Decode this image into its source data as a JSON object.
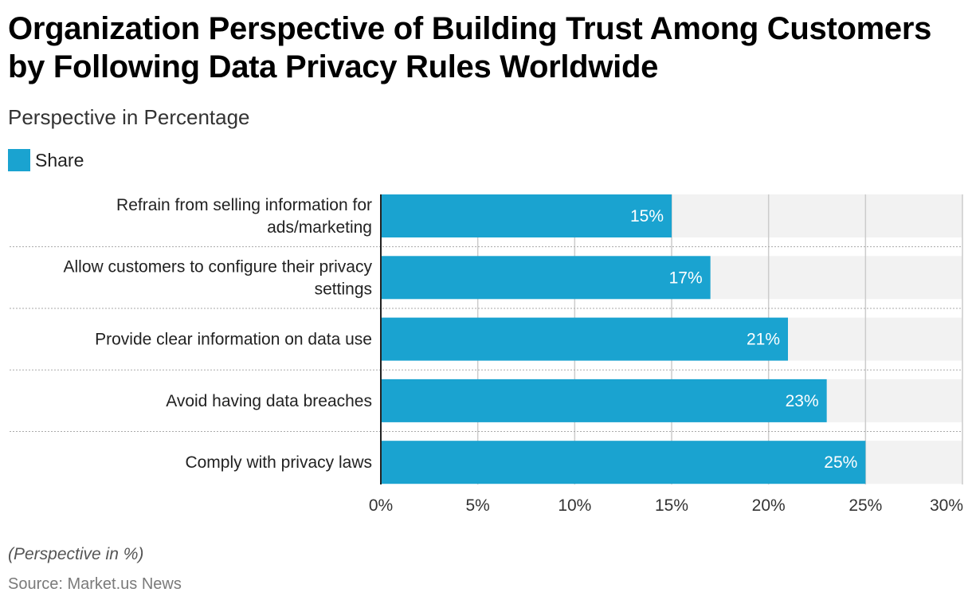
{
  "page": {
    "title": "Organization Perspective of Building Trust Among Customers by Following Data Privacy Rules Worldwide",
    "subtitle": "Perspective in Percentage",
    "footnote": "(Perspective in %)",
    "source": "Source: Market.us News"
  },
  "colors": {
    "bar": "#1aa3d0",
    "track": "#f2f2f2",
    "grid": "#cccccc",
    "axis": "#222222"
  },
  "chart_data": {
    "type": "bar",
    "orientation": "horizontal",
    "title": "Organization Perspective of Building Trust Among Customers by Following Data Privacy Rules Worldwide",
    "subtitle": "Perspective in Percentage",
    "legend": {
      "position": "top-left",
      "entries": [
        "Share"
      ]
    },
    "categories": [
      [
        "Refrain from selling information for",
        "ads/marketing"
      ],
      [
        "Allow customers to configure their privacy",
        "settings"
      ],
      [
        "Provide clear information on data use"
      ],
      [
        "Avoid having data breaches"
      ],
      [
        "Comply with privacy laws"
      ]
    ],
    "series": [
      {
        "name": "Share",
        "values": [
          15,
          17,
          21,
          23,
          25
        ]
      }
    ],
    "value_labels": [
      "15%",
      "17%",
      "21%",
      "23%",
      "25%"
    ],
    "xlim": [
      0,
      30
    ],
    "xticks": [
      0,
      5,
      10,
      15,
      20,
      25,
      30
    ],
    "xtick_labels": [
      "0%",
      "5%",
      "10%",
      "15%",
      "20%",
      "25%",
      "30%"
    ],
    "grid": true
  }
}
